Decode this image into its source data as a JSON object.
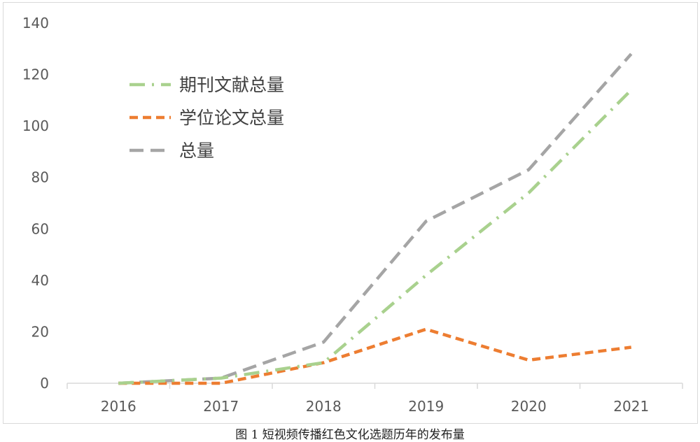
{
  "caption": "图 1  短视频传播红色文化选题历年的发布量",
  "chart_data": {
    "type": "line",
    "title": "",
    "xlabel": "",
    "ylabel": "",
    "x": [
      "2016",
      "2017",
      "2018",
      "2019",
      "2020",
      "2021"
    ],
    "ylim": [
      0,
      140
    ],
    "yticks": [
      0,
      20,
      40,
      60,
      80,
      100,
      120,
      140
    ],
    "grid": false,
    "legend_position": "top-left",
    "series": [
      {
        "name": "期刊文献总量",
        "values": [
          0,
          2,
          8,
          42,
          74,
          114
        ],
        "color": "#a9d18e",
        "dash": "dashdot"
      },
      {
        "name": "学位论文总量",
        "values": [
          0,
          0,
          8,
          21,
          9,
          14
        ],
        "color": "#ed7d31",
        "dash": "dash"
      },
      {
        "name": "总量",
        "values": [
          0,
          2,
          16,
          63,
          83,
          128
        ],
        "color": "#a5a5a5",
        "dash": "longdash"
      }
    ]
  }
}
